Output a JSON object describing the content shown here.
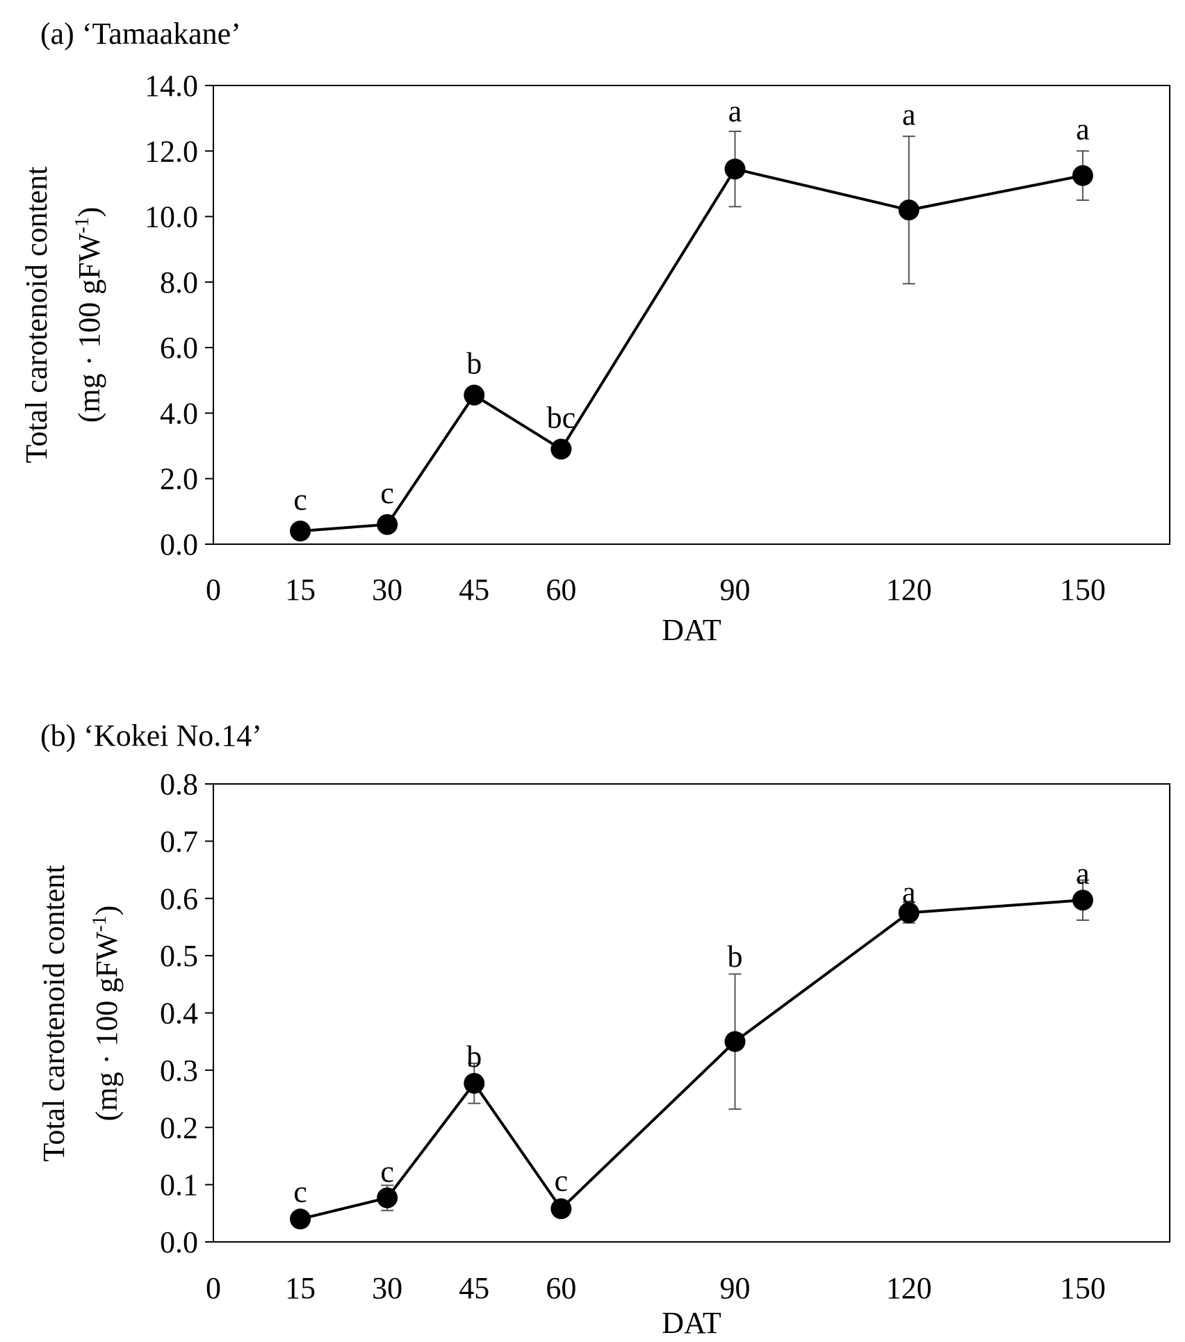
{
  "chart_data": [
    {
      "type": "line",
      "title": "(a) ‘Tamaakane’",
      "xlabel": "DAT",
      "ylabel": "Total carotenoid content",
      "ylabel_unit": "(mg · 100 gFW",
      "ylabel_unit_exp": "-1",
      "ylabel_unit_close": ")",
      "xlim": [
        0,
        165
      ],
      "ylim": [
        0,
        14
      ],
      "x_ticks": [
        "0",
        "15",
        "30",
        "45",
        "60",
        "90",
        "120",
        "150"
      ],
      "y_ticks": [
        "0.0",
        "2.0",
        "4.0",
        "6.0",
        "8.0",
        "10.0",
        "12.0",
        "14.0"
      ],
      "x_tick_positions": [
        0,
        15,
        30,
        45,
        60,
        90,
        120,
        150
      ],
      "y_tick_values": [
        0,
        2,
        4,
        6,
        8,
        10,
        12,
        14
      ],
      "x": [
        15,
        30,
        45,
        60,
        90,
        120,
        150
      ],
      "values": [
        0.4,
        0.6,
        4.55,
        2.9,
        11.45,
        10.2,
        11.25
      ],
      "errors": [
        0,
        0,
        0,
        0,
        1.15,
        2.25,
        0.75
      ],
      "labels": [
        "c",
        "c",
        "b",
        "bc",
        "a",
        "a",
        "a"
      ],
      "label_values": [
        1.35,
        1.55,
        5.5,
        3.85,
        13.2,
        13.1,
        12.65
      ]
    },
    {
      "type": "line",
      "title": "(b) ‘Kokei No.14’",
      "xlabel": "DAT",
      "ylabel": "Total carotenoid content",
      "ylabel_unit": "(mg · 100 gFW",
      "ylabel_unit_exp": "-1",
      "ylabel_unit_close": ")",
      "xlim": [
        0,
        165
      ],
      "ylim": [
        0,
        0.8
      ],
      "x_ticks": [
        "0",
        "15",
        "30",
        "45",
        "60",
        "90",
        "120",
        "150"
      ],
      "y_ticks": [
        "0.0",
        "0.1",
        "0.2",
        "0.3",
        "0.4",
        "0.5",
        "0.6",
        "0.7",
        "0.8"
      ],
      "x_tick_positions": [
        0,
        15,
        30,
        45,
        60,
        90,
        120,
        150
      ],
      "y_tick_values": [
        0,
        0.1,
        0.2,
        0.3,
        0.4,
        0.5,
        0.6,
        0.7,
        0.8
      ],
      "x": [
        15,
        30,
        45,
        60,
        90,
        120,
        150
      ],
      "values": [
        0.04,
        0.077,
        0.277,
        0.058,
        0.35,
        0.575,
        0.597
      ],
      "errors": [
        0,
        0.022,
        0.035,
        0,
        0.118,
        0.018,
        0.035
      ],
      "labels": [
        "c",
        "c",
        "b",
        "c",
        "b",
        "a",
        "a"
      ],
      "label_values": [
        0.087,
        0.122,
        0.323,
        0.106,
        0.498,
        0.61,
        0.643
      ]
    }
  ]
}
